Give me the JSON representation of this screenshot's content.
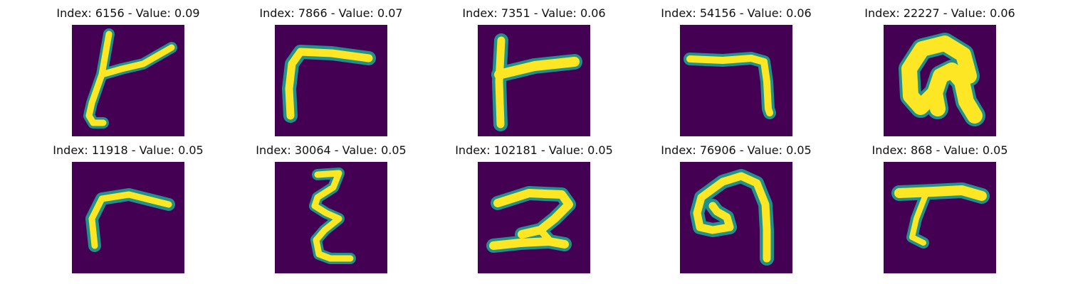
{
  "colors": {
    "background": "#440154",
    "stroke_outer": "#21918c",
    "stroke_inner": "#fde725"
  },
  "panels": [
    {
      "title": "Index: 6156 - Value: 0.09"
    },
    {
      "title": "Index: 7866 - Value: 0.07"
    },
    {
      "title": "Index: 7351 - Value: 0.06"
    },
    {
      "title": "Index: 54156 - Value: 0.06"
    },
    {
      "title": "Index: 22227 - Value: 0.06"
    },
    {
      "title": "Index: 11918 - Value: 0.05"
    },
    {
      "title": "Index: 30064 - Value: 0.05"
    },
    {
      "title": "Index: 102181 - Value: 0.05"
    },
    {
      "title": "Index: 76906 - Value: 0.05"
    },
    {
      "title": "Index: 868 - Value: 0.05"
    }
  ]
}
